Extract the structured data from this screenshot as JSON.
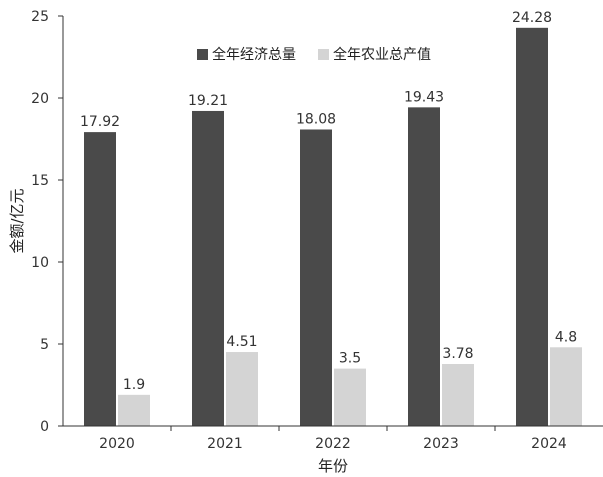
{
  "chart_data": {
    "type": "bar",
    "categories": [
      "2020",
      "2021",
      "2022",
      "2023",
      "2024"
    ],
    "series": [
      {
        "name": "全年经济总量",
        "values": [
          17.92,
          19.21,
          18.08,
          19.43,
          24.28
        ],
        "color": "#4a4a4a"
      },
      {
        "name": "全年农业总产值",
        "values": [
          1.9,
          4.51,
          3.5,
          3.78,
          4.8
        ],
        "color": "#d4d4d4"
      }
    ],
    "data_labels": [
      [
        "17.92",
        "19.21",
        "18.08",
        "19.43",
        "24.28"
      ],
      [
        "1.9",
        "4.51",
        "3.5",
        "3.78",
        "4.8"
      ]
    ],
    "xlabel": "年份",
    "ylabel": "金额/亿元",
    "ylim": [
      0,
      25
    ],
    "yticks": [
      "0",
      "5",
      "10",
      "15",
      "20",
      "25"
    ],
    "grid": false,
    "legend_position": "top-center"
  }
}
